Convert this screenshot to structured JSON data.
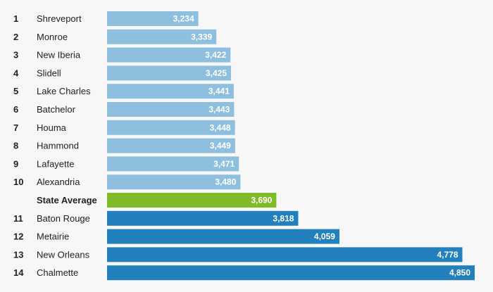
{
  "chart_data": {
    "type": "bar",
    "orientation": "horizontal",
    "categories": [
      "Shreveport",
      "Monroe",
      "New Iberia",
      "Slidell",
      "Lake Charles",
      "Batchelor",
      "Houma",
      "Hammond",
      "Lafayette",
      "Alexandria",
      "State Average",
      "Baton Rouge",
      "Metairie",
      "New Orleans",
      "Chalmette"
    ],
    "ranks": [
      "1",
      "2",
      "3",
      "4",
      "5",
      "6",
      "7",
      "8",
      "9",
      "10",
      "",
      "11",
      "12",
      "13",
      "14"
    ],
    "values": [
      3234,
      3339,
      3422,
      3425,
      3441,
      3443,
      3448,
      3449,
      3471,
      3480,
      3690,
      3818,
      4059,
      4778,
      4850
    ],
    "value_labels": [
      "3,234",
      "3,339",
      "3,422",
      "3,425",
      "3,441",
      "3,443",
      "3,448",
      "3,449",
      "3,471",
      "3,480",
      "3,690",
      "3,818",
      "4,059",
      "4,778",
      "4,850"
    ],
    "groups": [
      "below",
      "below",
      "below",
      "below",
      "below",
      "below",
      "below",
      "below",
      "below",
      "below",
      "average",
      "above",
      "above",
      "above",
      "above"
    ],
    "title": "",
    "xlabel": "",
    "ylabel": "",
    "grid": false,
    "legend": "none"
  },
  "colors": {
    "below": "#8ebfdf",
    "average": "#7fbb26",
    "above": "#2281bd",
    "background": "#f7f7f7",
    "text": "#222222",
    "value_text": "#ffffff"
  }
}
